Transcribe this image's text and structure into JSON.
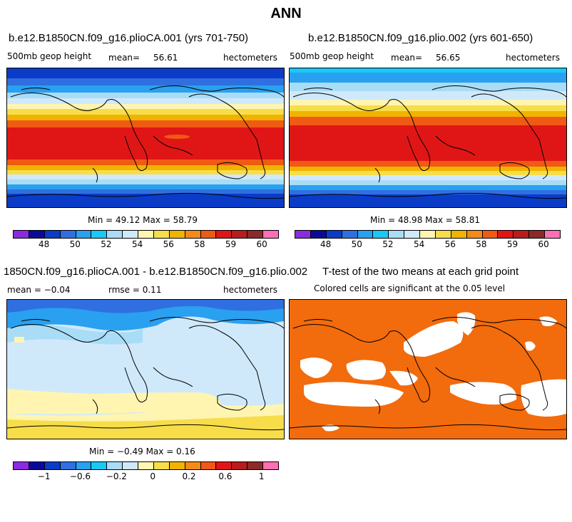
{
  "figure_title": "ANN",
  "palette": [
    "#8a2be2",
    "#0a0a9a",
    "#0a3cc8",
    "#2f6fe0",
    "#2aa0f0",
    "#19c8f5",
    "#a9dcf6",
    "#cfe9fb",
    "#fff5b0",
    "#f7dd4a",
    "#f0b400",
    "#f58a18",
    "#f05a14",
    "#e01616",
    "#b81c1c",
    "#8c2a2a",
    "#ff6fb4"
  ],
  "panels": {
    "p1": {
      "title": "b.e12.B1850CN.f09_g16.plioCA.001 (yrs 701-750)",
      "variable": "500mb geop height",
      "mean_label": "mean=",
      "mean_value": "56.61",
      "units": "hectometers",
      "minmax": "Min =  49.12 Max =  58.79",
      "colorbar_labels": [
        "48",
        "50",
        "52",
        "54",
        "56",
        "58",
        "59",
        "60"
      ]
    },
    "p2": {
      "title": "b.e12.B1850CN.f09_g16.plio.002 (yrs 601-650)",
      "variable": "500mb geop height",
      "mean_label": "mean=",
      "mean_value": "56.65",
      "units": "hectometers",
      "minmax": "Min =  48.98 Max =  58.81",
      "colorbar_labels": [
        "48",
        "50",
        "52",
        "54",
        "56",
        "58",
        "59",
        "60"
      ]
    },
    "p3": {
      "title": "1850CN.f09_g16.plioCA.001 - b.e12.B1850CN.f09_g16.plio.002",
      "mean_text": "mean =  −0.04",
      "rmse_text": "rmse =    0.11",
      "units": "hectometers",
      "minmax": "Min =  −0.49 Max =   0.16",
      "colorbar_labels": [
        "−1",
        "−0.6",
        "−0.2",
        "0",
        "0.2",
        "0.6",
        "1"
      ]
    },
    "p4": {
      "title": "T-test of the two means at each grid point",
      "subtitle": "Colored cells are significant at the 0.05 level",
      "significant_color": "#f26b0d"
    }
  }
}
